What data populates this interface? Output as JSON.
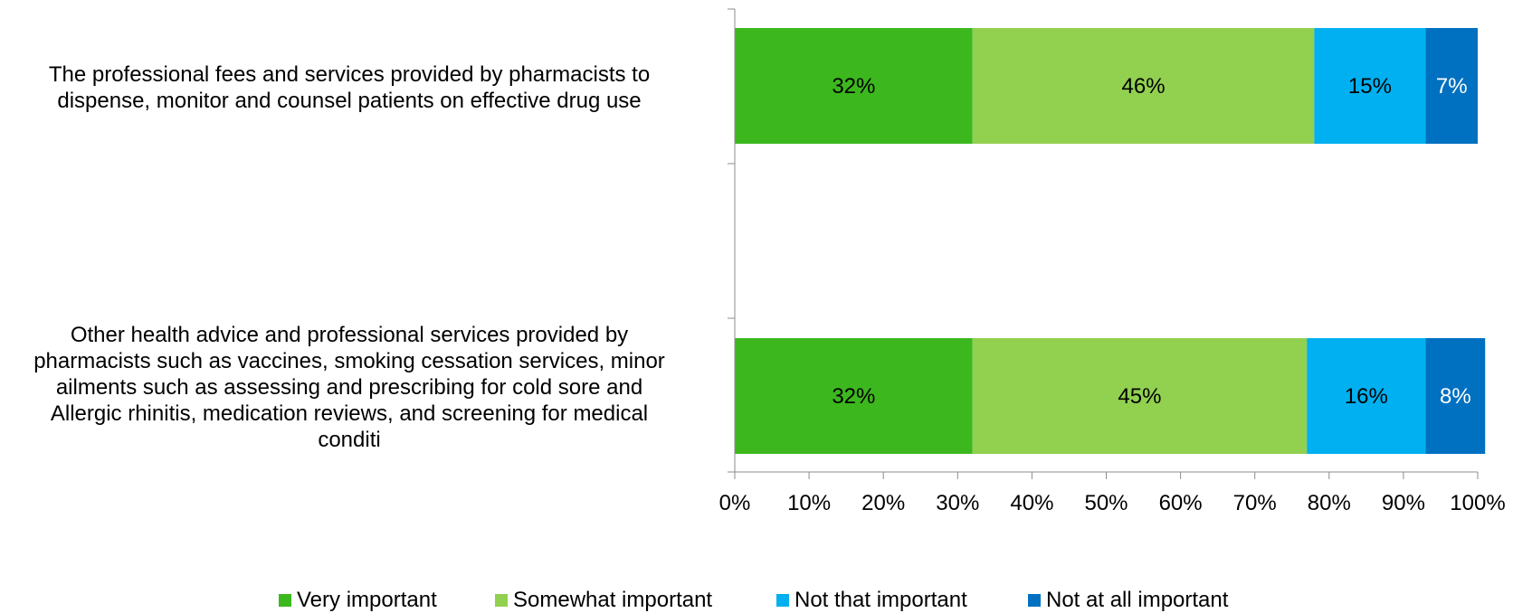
{
  "chart_data": {
    "type": "bar",
    "orientation": "horizontal",
    "stacked": true,
    "title": "",
    "xlabel": "",
    "ylabel": "",
    "xlim": [
      0,
      100
    ],
    "x_ticks": [
      "0%",
      "10%",
      "20%",
      "30%",
      "40%",
      "50%",
      "60%",
      "70%",
      "80%",
      "90%",
      "100%"
    ],
    "grid": false,
    "legend_position": "bottom",
    "categories": [
      "The professional fees and services provided by pharmacists to dispense, monitor and counsel patients on effective drug use",
      "Other health advice and professional services provided by pharmacists such as vaccines, smoking cessation services, minor ailments such as assessing and prescribing for cold sore and Allergic rhinitis, medication reviews, and screening for medical conditi"
    ],
    "category_lines": [
      [
        "The professional fees and services provided by pharmacists to",
        "dispense, monitor and counsel patients on effective drug use"
      ],
      [
        "Other health advice and professional services provided by",
        "pharmacists such as vaccines, smoking cessation services, minor",
        "ailments such as assessing and prescribing for cold sore and",
        "Allergic rhinitis, medication reviews, and screening for medical",
        "conditi"
      ]
    ],
    "series": [
      {
        "name": "Very important",
        "values": [
          32,
          32
        ],
        "labels": [
          "32%",
          "32%"
        ],
        "color": "#3cb81e",
        "label_color": "#000000"
      },
      {
        "name": "Somewhat important",
        "values": [
          46,
          45
        ],
        "labels": [
          "46%",
          "45%"
        ],
        "color": "#92d050",
        "label_color": "#000000"
      },
      {
        "name": "Not that important",
        "values": [
          15,
          16
        ],
        "labels": [
          "15%",
          "16%"
        ],
        "color": "#00b0f0",
        "label_color": "#000000"
      },
      {
        "name": "Not at all important",
        "values": [
          7,
          8
        ],
        "labels": [
          "7%",
          "8%"
        ],
        "color": "#0070c0",
        "label_color": "#ffffff"
      }
    ]
  }
}
